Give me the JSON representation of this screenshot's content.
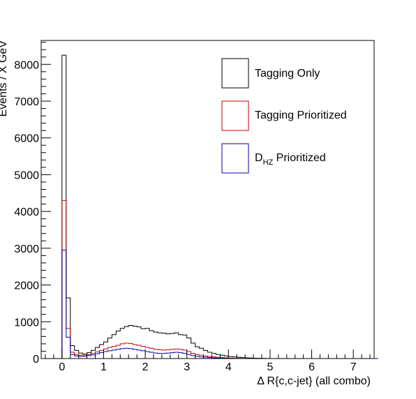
{
  "chart_data": {
    "type": "histogram-step",
    "title": "",
    "xlabel": "Δ R{c,c-jet}  (all combo)",
    "ylabel": "Events / X GeV",
    "xlim": [
      -0.5,
      7.5
    ],
    "ylim": [
      0,
      8650
    ],
    "x_ticks": [
      0,
      1,
      2,
      3,
      4,
      5,
      6,
      7
    ],
    "y_ticks": [
      0,
      1000,
      2000,
      3000,
      4000,
      5000,
      6000,
      7000,
      8000
    ],
    "bin_width": 0.1,
    "bin_start": -0.1,
    "legend_position": "top-right",
    "legend": [
      {
        "label": "Tagging Only",
        "color": "#000000"
      },
      {
        "label": "Tagging Prioritized",
        "color": "#cc0000"
      },
      {
        "label_main": "D",
        "label_sub": "HZ",
        "label_rest": " Prioritized",
        "color": "#0000aa"
      }
    ],
    "series": [
      {
        "color": "#000000",
        "values": [
          0,
          8250,
          1650,
          350,
          220,
          150,
          120,
          160,
          220,
          300,
          380,
          450,
          560,
          650,
          750,
          820,
          870,
          900,
          880,
          860,
          810,
          820,
          760,
          720,
          700,
          690,
          670,
          680,
          700,
          650,
          640,
          560,
          420,
          320,
          280,
          220,
          170,
          140,
          110,
          90,
          70,
          55,
          45,
          35,
          25,
          20,
          15,
          10,
          8,
          5,
          3,
          0,
          0,
          0,
          0,
          0,
          0,
          0,
          0,
          0,
          0,
          0,
          0,
          0,
          0,
          0,
          0,
          0,
          0,
          0,
          0,
          0,
          0,
          0,
          0,
          0,
          0
        ]
      },
      {
        "color": "#cc0000",
        "values": [
          0,
          4300,
          820,
          170,
          110,
          90,
          90,
          110,
          140,
          180,
          220,
          260,
          300,
          330,
          360,
          400,
          420,
          410,
          380,
          360,
          330,
          300,
          280,
          250,
          240,
          230,
          240,
          250,
          260,
          250,
          230,
          190,
          140,
          110,
          90,
          70,
          55,
          45,
          35,
          25,
          18,
          12,
          8,
          5,
          3,
          2,
          0,
          0,
          0,
          0,
          0,
          0,
          0,
          0,
          0,
          0,
          0,
          0,
          0,
          0,
          0,
          0,
          0,
          0,
          0,
          0,
          0,
          0,
          0,
          0,
          0,
          0,
          0,
          0,
          0,
          0,
          0
        ]
      },
      {
        "color": "#0000aa",
        "values": [
          0,
          2950,
          580,
          110,
          70,
          60,
          60,
          80,
          100,
          130,
          160,
          190,
          210,
          230,
          250,
          270,
          280,
          270,
          250,
          230,
          210,
          190,
          170,
          150,
          140,
          140,
          150,
          160,
          170,
          160,
          140,
          110,
          80,
          60,
          45,
          35,
          25,
          20,
          15,
          10,
          7,
          5,
          3,
          2,
          1,
          0,
          0,
          0,
          0,
          0,
          0,
          0,
          0,
          0,
          0,
          0,
          0,
          0,
          0,
          0,
          0,
          0,
          0,
          0,
          0,
          0,
          0,
          0,
          0,
          0,
          0,
          0,
          0,
          0,
          0,
          0,
          0
        ]
      }
    ]
  }
}
